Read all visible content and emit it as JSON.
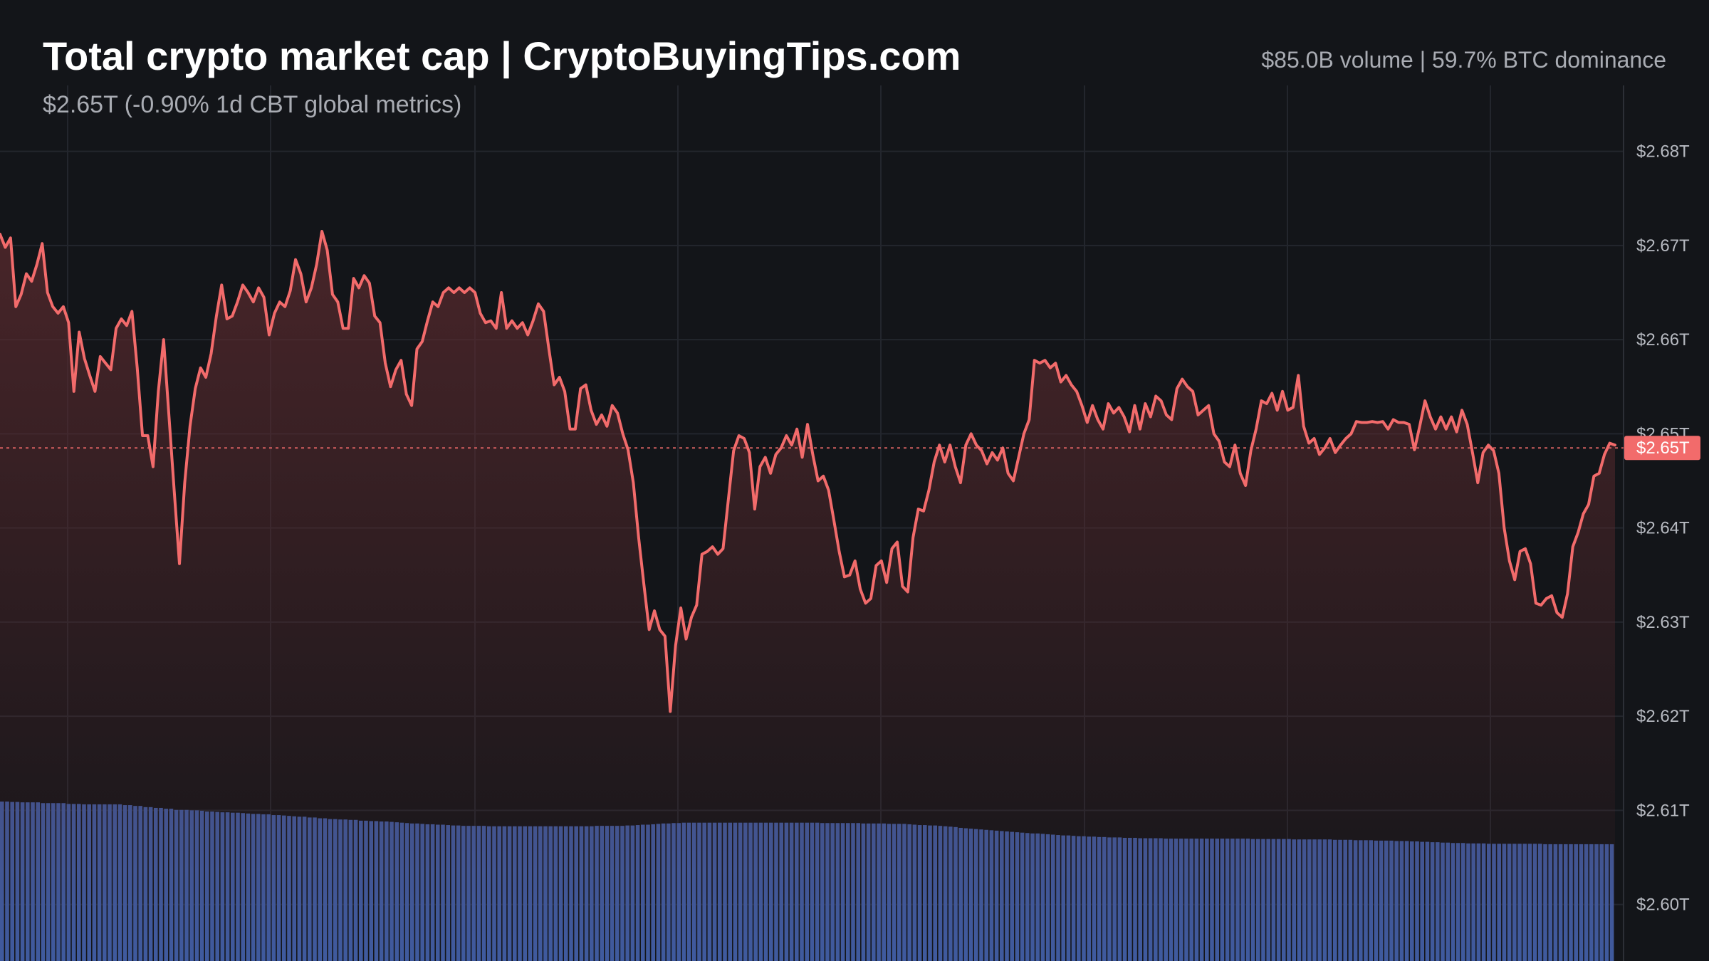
{
  "header": {
    "title": "Total crypto market cap | CryptoBuyingTips.com",
    "subtitle": "$2.65T (-0.90% 1d CBT global metrics)",
    "stats": "$85.0B volume | 59.7% BTC dominance"
  },
  "colors": {
    "background": "#131519",
    "line": "#f26b6b",
    "area_top": "#5a2a2e",
    "grid": "#23262d",
    "volume": "#3f5a9e",
    "axis_text": "#b7bac1",
    "price_tag": "#f26b6b"
  },
  "chart_data": {
    "type": "line",
    "title": "Total crypto market cap | CryptoBuyingTips.com",
    "grid": true,
    "ylim": [
      2.594,
      2.687
    ],
    "y_ticks": [
      {
        "value": 2.68,
        "label": "$2.68T"
      },
      {
        "value": 2.67,
        "label": "$2.67T"
      },
      {
        "value": 2.66,
        "label": "$2.66T"
      },
      {
        "value": 2.65,
        "label": "$2.65T"
      },
      {
        "value": 2.64,
        "label": "$2.64T"
      },
      {
        "value": 2.63,
        "label": "$2.63T"
      },
      {
        "value": 2.62,
        "label": "$2.62T"
      },
      {
        "value": 2.61,
        "label": "$2.61T"
      },
      {
        "value": 2.6,
        "label": "$2.60T"
      }
    ],
    "current": {
      "value": 2.6485,
      "label": "$2.65T"
    },
    "series": [
      {
        "values": [
          2.6712,
          2.6698,
          2.6708,
          2.6635,
          2.6648,
          2.667,
          2.6662,
          2.668,
          2.6702,
          2.665,
          2.6635,
          2.6628,
          2.6635,
          2.6618,
          2.6545,
          2.6608,
          2.658,
          2.6562,
          2.6545,
          2.6582,
          2.6575,
          2.6568,
          2.6612,
          2.6622,
          2.6615,
          2.663,
          2.657,
          2.6498,
          2.6498,
          2.6465,
          2.6545,
          2.66,
          2.652,
          2.644,
          2.6362,
          2.6448,
          2.6508,
          2.6548,
          2.657,
          2.656,
          2.6585,
          2.6625,
          2.6658,
          2.6622,
          2.6625,
          2.664,
          2.6658,
          2.665,
          2.664,
          2.6655,
          2.6645,
          2.6605,
          2.6628,
          2.664,
          2.6635,
          2.6652,
          2.6685,
          2.667,
          2.664,
          2.6655,
          2.668,
          2.6715,
          2.6695,
          2.6648,
          2.664,
          2.6612,
          2.6612,
          2.6665,
          2.6655,
          2.6668,
          2.666,
          2.6625,
          2.6618,
          2.6575,
          2.655,
          2.6568,
          2.6578,
          2.6542,
          2.653,
          2.659,
          2.6598,
          2.662,
          2.664,
          2.6635,
          2.665,
          2.6655,
          2.665,
          2.6655,
          2.665,
          2.6655,
          2.665,
          2.6628,
          2.6618,
          2.662,
          2.6612,
          2.665,
          2.6612,
          2.662,
          2.6612,
          2.6618,
          2.6605,
          2.662,
          2.6638,
          2.663,
          2.659,
          2.6552,
          2.656,
          2.6545,
          2.6505,
          2.6505,
          2.6548,
          2.6552,
          2.6525,
          2.651,
          2.652,
          2.6508,
          2.653,
          2.6522,
          2.65,
          2.6483,
          2.6448,
          2.639,
          2.634,
          2.6292,
          2.6312,
          2.6292,
          2.6285,
          2.6205,
          2.6275,
          2.6315,
          2.6282,
          2.6305,
          2.6318,
          2.6372,
          2.6375,
          2.638,
          2.6372,
          2.6378,
          2.643,
          2.6482,
          2.6498,
          2.6495,
          2.648,
          2.642,
          2.6465,
          2.6475,
          2.6458,
          2.6478,
          2.6485,
          2.6498,
          2.6488,
          2.6505,
          2.6475,
          2.651,
          2.6478,
          2.645,
          2.6455,
          2.644,
          2.6408,
          2.6375,
          2.6348,
          2.635,
          2.6365,
          2.6335,
          2.632,
          2.6325,
          2.636,
          2.6365,
          2.6342,
          2.6378,
          2.6385,
          2.6338,
          2.6332,
          2.639,
          2.642,
          2.6418,
          2.644,
          2.647,
          2.6488,
          2.647,
          2.6488,
          2.6465,
          2.6448,
          2.6488,
          2.65,
          2.6488,
          2.6482,
          2.6468,
          2.648,
          2.6472,
          2.6485,
          2.6458,
          2.645,
          2.6475,
          2.65,
          2.6515,
          2.6578,
          2.6575,
          2.6578,
          2.657,
          2.6575,
          2.6555,
          2.6562,
          2.6552,
          2.6545,
          2.653,
          2.6512,
          2.653,
          2.6515,
          2.6505,
          2.6532,
          2.6522,
          2.6528,
          2.6518,
          2.6502,
          2.653,
          2.6505,
          2.6532,
          2.6518,
          2.654,
          2.6535,
          2.652,
          2.6515,
          2.6548,
          2.6558,
          2.655,
          2.6545,
          2.652,
          2.6525,
          2.653,
          2.65,
          2.6492,
          2.647,
          2.6465,
          2.6488,
          2.6458,
          2.6445,
          2.6482,
          2.6505,
          2.6535,
          2.6532,
          2.6543,
          2.6525,
          2.6545,
          2.6525,
          2.6528,
          2.6562,
          2.6508,
          2.649,
          2.6495,
          2.6478,
          2.6485,
          2.6495,
          2.648,
          2.6488,
          2.6495,
          2.65,
          2.6513,
          2.6512,
          2.6512,
          2.6513,
          2.6512,
          2.6513,
          2.6505,
          2.6515,
          2.6512,
          2.6512,
          2.651,
          2.6483,
          2.6508,
          2.6535,
          2.6518,
          2.6505,
          2.6518,
          2.6505,
          2.6518,
          2.6502,
          2.6525,
          2.651,
          2.648,
          2.6448,
          2.648,
          2.6488,
          2.6482,
          2.6458,
          2.64,
          2.6365,
          2.6345,
          2.6375,
          2.6378,
          2.6362,
          2.632,
          2.6318,
          2.6325,
          2.6328,
          2.631,
          2.6305,
          2.633,
          2.638,
          2.6395,
          2.6415,
          2.6425,
          2.6455,
          2.6458,
          2.6478,
          2.649,
          2.6488
        ]
      }
    ],
    "volume": {
      "ylim": [
        0,
        1
      ],
      "values": [
        0.4,
        0.4,
        0.399,
        0.399,
        0.398,
        0.398,
        0.398,
        0.398,
        0.396,
        0.396,
        0.396,
        0.396,
        0.396,
        0.394,
        0.394,
        0.394,
        0.393,
        0.393,
        0.393,
        0.393,
        0.393,
        0.393,
        0.393,
        0.393,
        0.391,
        0.391,
        0.389,
        0.389,
        0.386,
        0.386,
        0.384,
        0.384,
        0.382,
        0.382,
        0.379,
        0.379,
        0.379,
        0.378,
        0.378,
        0.377,
        0.375,
        0.375,
        0.374,
        0.373,
        0.373,
        0.372,
        0.372,
        0.371,
        0.37,
        0.369,
        0.369,
        0.368,
        0.368,
        0.366,
        0.366,
        0.365,
        0.364,
        0.363,
        0.362,
        0.362,
        0.36,
        0.36,
        0.358,
        0.358,
        0.356,
        0.356,
        0.355,
        0.355,
        0.354,
        0.354,
        0.352,
        0.352,
        0.351,
        0.351,
        0.35,
        0.35,
        0.349,
        0.348,
        0.347,
        0.346,
        0.345,
        0.345,
        0.344,
        0.343,
        0.343,
        0.342,
        0.342,
        0.341,
        0.34,
        0.34,
        0.339,
        0.339,
        0.339,
        0.339,
        0.339,
        0.338,
        0.338,
        0.338,
        0.338,
        0.338,
        0.338,
        0.338,
        0.338,
        0.338,
        0.338,
        0.338,
        0.338,
        0.338,
        0.338,
        0.338,
        0.338,
        0.338,
        0.338,
        0.338,
        0.338,
        0.338,
        0.339,
        0.339,
        0.339,
        0.339,
        0.339,
        0.339,
        0.34,
        0.34,
        0.341,
        0.342,
        0.342,
        0.343,
        0.344,
        0.345,
        0.345,
        0.346,
        0.346,
        0.347,
        0.347,
        0.347,
        0.347,
        0.347,
        0.347,
        0.347,
        0.347,
        0.347,
        0.347,
        0.347,
        0.347,
        0.347,
        0.347,
        0.347,
        0.347,
        0.347,
        0.347,
        0.347,
        0.347,
        0.347,
        0.347,
        0.347,
        0.347,
        0.347,
        0.347,
        0.347,
        0.346,
        0.346,
        0.346,
        0.346,
        0.346,
        0.346,
        0.346,
        0.346,
        0.345,
        0.345,
        0.345,
        0.345,
        0.345,
        0.344,
        0.344,
        0.344,
        0.344,
        0.343,
        0.342,
        0.341,
        0.341,
        0.34,
        0.34,
        0.339,
        0.338,
        0.337,
        0.336,
        0.334,
        0.333,
        0.332,
        0.331,
        0.33,
        0.329,
        0.328,
        0.327,
        0.326,
        0.325,
        0.324,
        0.323,
        0.322,
        0.321,
        0.32,
        0.32,
        0.319,
        0.318,
        0.317,
        0.316,
        0.315,
        0.315,
        0.314,
        0.313,
        0.313,
        0.312,
        0.312,
        0.311,
        0.311,
        0.31,
        0.31,
        0.31,
        0.309,
        0.309,
        0.309,
        0.308,
        0.308,
        0.308,
        0.308,
        0.308,
        0.307,
        0.307,
        0.307,
        0.307,
        0.307,
        0.307,
        0.307,
        0.307,
        0.307,
        0.307,
        0.307,
        0.307,
        0.307,
        0.307,
        0.307,
        0.307,
        0.307,
        0.306,
        0.306,
        0.306,
        0.306,
        0.306,
        0.306,
        0.306,
        0.306,
        0.305,
        0.305,
        0.305,
        0.305,
        0.305,
        0.305,
        0.305,
        0.305,
        0.304,
        0.304,
        0.304,
        0.304,
        0.303,
        0.303,
        0.303,
        0.303,
        0.302,
        0.302,
        0.302,
        0.302,
        0.301,
        0.301,
        0.301,
        0.3,
        0.3,
        0.299,
        0.299,
        0.298,
        0.298,
        0.297,
        0.297,
        0.296,
        0.296,
        0.296,
        0.295,
        0.295,
        0.295,
        0.295,
        0.294,
        0.294,
        0.294,
        0.294,
        0.294,
        0.294,
        0.294,
        0.294,
        0.294,
        0.294,
        0.294,
        0.293,
        0.293,
        0.293,
        0.293,
        0.293,
        0.293,
        0.293,
        0.293,
        0.293,
        0.293,
        0.293,
        0.293,
        0.293,
        0.293
      ]
    }
  }
}
